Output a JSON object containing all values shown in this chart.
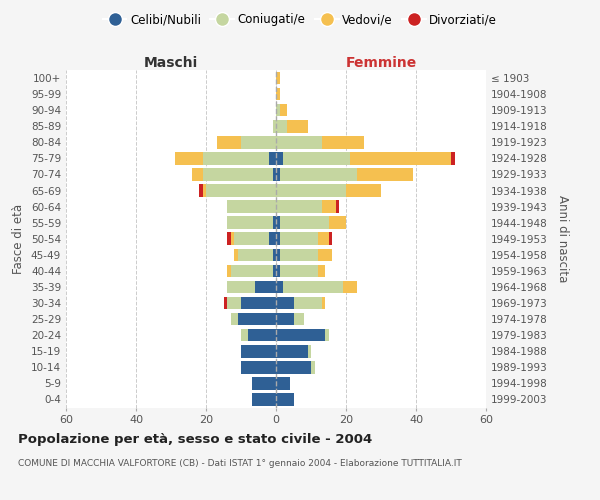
{
  "age_groups": [
    "100+",
    "95-99",
    "90-94",
    "85-89",
    "80-84",
    "75-79",
    "70-74",
    "65-69",
    "60-64",
    "55-59",
    "50-54",
    "45-49",
    "40-44",
    "35-39",
    "30-34",
    "25-29",
    "20-24",
    "15-19",
    "10-14",
    "5-9",
    "0-4"
  ],
  "birth_years": [
    "≤ 1903",
    "1904-1908",
    "1909-1913",
    "1914-1918",
    "1919-1923",
    "1924-1928",
    "1929-1933",
    "1934-1938",
    "1939-1943",
    "1944-1948",
    "1949-1953",
    "1954-1958",
    "1959-1963",
    "1964-1968",
    "1969-1973",
    "1974-1978",
    "1979-1983",
    "1984-1988",
    "1989-1993",
    "1994-1998",
    "1999-2003"
  ],
  "males": {
    "celibi": [
      0,
      0,
      0,
      0,
      0,
      2,
      1,
      0,
      0,
      1,
      2,
      1,
      1,
      6,
      10,
      11,
      8,
      10,
      10,
      7,
      7
    ],
    "coniugati": [
      0,
      0,
      0,
      1,
      10,
      19,
      20,
      20,
      14,
      13,
      10,
      10,
      12,
      8,
      4,
      2,
      2,
      0,
      0,
      0,
      0
    ],
    "vedovi": [
      0,
      0,
      0,
      0,
      7,
      8,
      3,
      1,
      0,
      0,
      1,
      1,
      1,
      0,
      0,
      0,
      0,
      0,
      0,
      0,
      0
    ],
    "divorziati": [
      0,
      0,
      0,
      0,
      0,
      0,
      0,
      1,
      0,
      0,
      1,
      0,
      0,
      0,
      1,
      0,
      0,
      0,
      0,
      0,
      0
    ]
  },
  "females": {
    "nubili": [
      0,
      0,
      0,
      0,
      0,
      2,
      1,
      0,
      0,
      1,
      1,
      1,
      1,
      2,
      5,
      5,
      14,
      9,
      10,
      4,
      5
    ],
    "coniugate": [
      0,
      0,
      1,
      3,
      13,
      19,
      22,
      20,
      13,
      14,
      11,
      11,
      11,
      17,
      8,
      3,
      1,
      1,
      1,
      0,
      0
    ],
    "vedove": [
      1,
      1,
      2,
      6,
      12,
      29,
      16,
      10,
      4,
      5,
      3,
      4,
      2,
      4,
      1,
      0,
      0,
      0,
      0,
      0,
      0
    ],
    "divorziate": [
      0,
      0,
      0,
      0,
      0,
      1,
      0,
      0,
      1,
      0,
      1,
      0,
      0,
      0,
      0,
      0,
      0,
      0,
      0,
      0,
      0
    ]
  },
  "colors": {
    "celibi": "#2f6095",
    "coniugati": "#c5d6a0",
    "vedovi": "#f5c050",
    "divorziati": "#cc2222"
  },
  "legend_labels": [
    "Celibi/Nubili",
    "Coniugati/e",
    "Vedovi/e",
    "Divorziati/e"
  ],
  "title": "Popolazione per età, sesso e stato civile - 2004",
  "subtitle": "COMUNE DI MACCHIA VALFORTORE (CB) - Dati ISTAT 1° gennaio 2004 - Elaborazione TUTTITALIA.IT",
  "xlabel_left": "Maschi",
  "xlabel_right": "Femmine",
  "ylabel_left": "Fasce di età",
  "ylabel_right": "Anni di nascita",
  "xlim": 60,
  "bg_color": "#f5f5f5",
  "plot_bg": "#ffffff"
}
